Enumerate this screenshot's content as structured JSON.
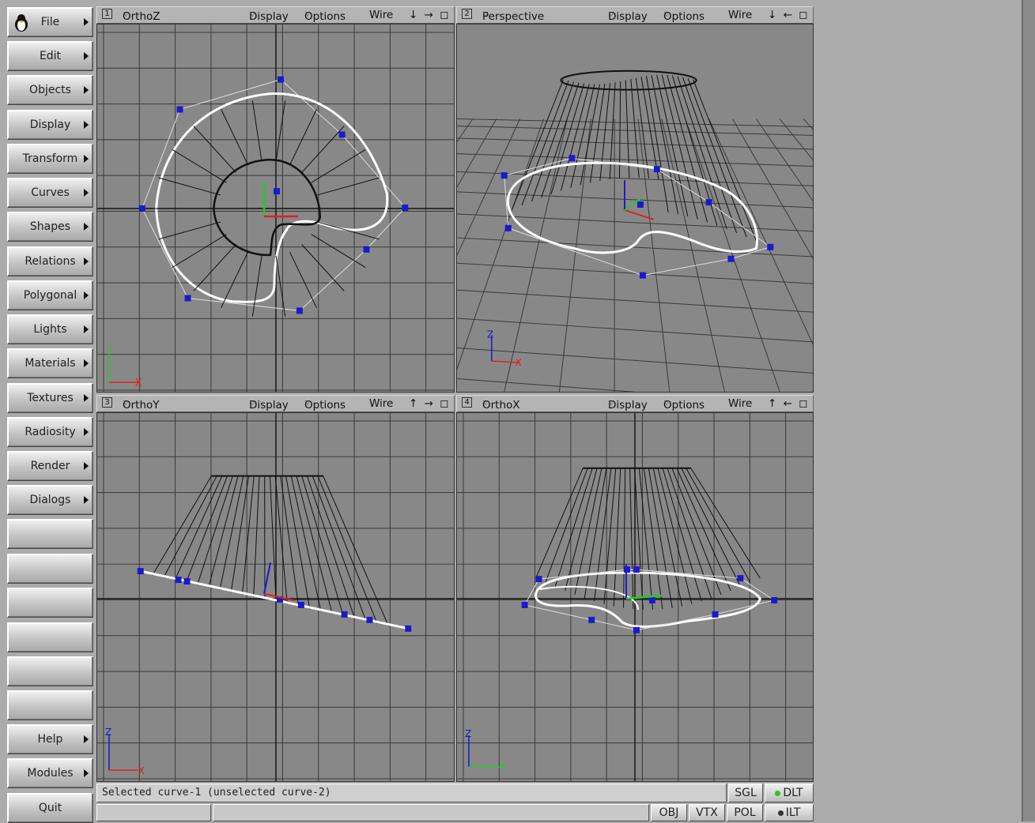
{
  "menu": {
    "items": [
      {
        "label": "File"
      },
      {
        "label": "Edit"
      },
      {
        "label": "Objects"
      },
      {
        "label": "Display"
      },
      {
        "label": "Transform"
      },
      {
        "label": "Curves"
      },
      {
        "label": "Shapes"
      },
      {
        "label": "Relations"
      },
      {
        "label": "Polygonal"
      },
      {
        "label": "Lights"
      },
      {
        "label": "Materials"
      },
      {
        "label": "Textures"
      },
      {
        "label": "Radiosity"
      },
      {
        "label": "Render"
      },
      {
        "label": "Dialogs"
      }
    ],
    "help_label": "Help",
    "modules_label": "Modules",
    "quit_label": "Quit"
  },
  "viewports": [
    {
      "num": "1",
      "name": "OrthoZ",
      "display": "Display",
      "options": "Options",
      "mode": "Wire",
      "arrows": "↓ → ◻",
      "axes": [
        "Y",
        "X"
      ]
    },
    {
      "num": "2",
      "name": "Perspective",
      "display": "Display",
      "options": "Options",
      "mode": "Wire",
      "arrows": "↓ ← ◻",
      "axes": [
        "Z",
        "X"
      ]
    },
    {
      "num": "3",
      "name": "OrthoY",
      "display": "Display",
      "options": "Options",
      "mode": "Wire",
      "arrows": "↑ → ◻",
      "axes": [
        "Z",
        "X"
      ]
    },
    {
      "num": "4",
      "name": "OrthoX",
      "display": "Display",
      "options": "Options",
      "mode": "Wire",
      "arrows": "↑ ← ◻",
      "axes": [
        "Z",
        "Y"
      ]
    }
  ],
  "status": {
    "message": "Selected curve-1 (unselected curve-2)",
    "sgl": "SGL",
    "dlt": "DLT",
    "obj": "OBJ",
    "vtx": "VTX",
    "pol": "POL",
    "ilt": "ILT"
  },
  "colors": {
    "accent_green": "#22cc22",
    "point_blue": "#1a1acc",
    "axis_red": "#e02020",
    "grid_bg": "#888888"
  }
}
